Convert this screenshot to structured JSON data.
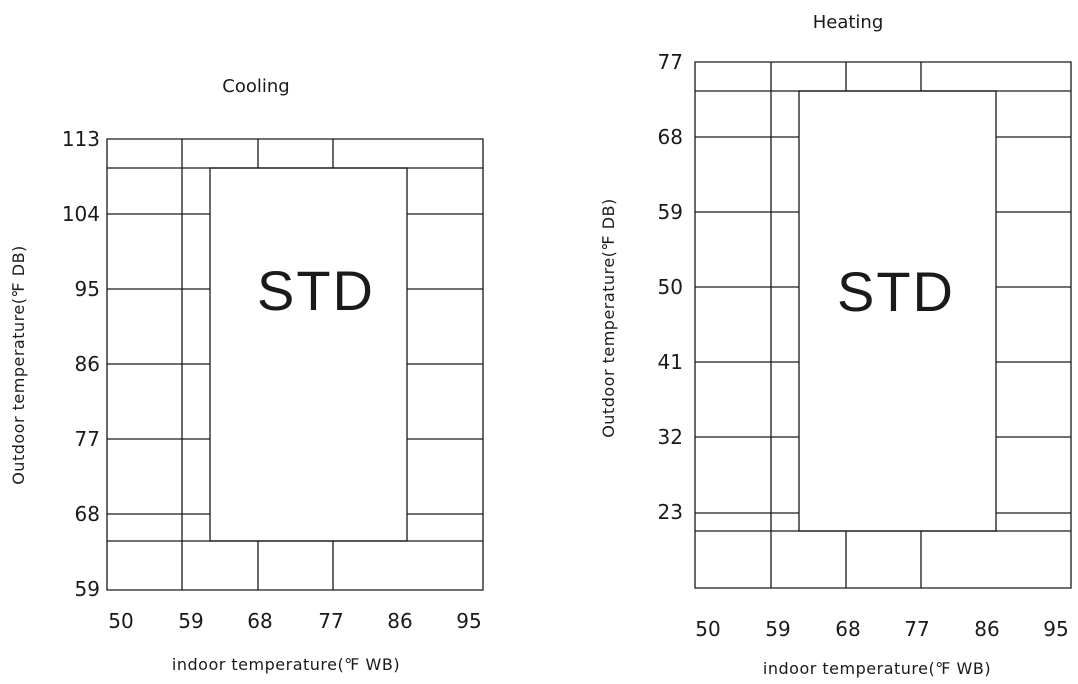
{
  "cooling": {
    "title": "Cooling",
    "xlabel": "indoor temperature(℉  WB)",
    "ylabel": "Outdoor temperature(℉  DB)",
    "x_ticks": [
      "50",
      "59",
      "68",
      "77",
      "86",
      "95"
    ],
    "y_ticks": [
      "113",
      "104",
      "95",
      "86",
      "77",
      "68",
      "59"
    ],
    "region_label": "STD"
  },
  "heating": {
    "title": "Heating",
    "xlabel": "indoor temperature(℉  WB)",
    "ylabel": "Outdoor temperature(℉  DB)",
    "x_ticks": [
      "50",
      "59",
      "68",
      "77",
      "86",
      "95"
    ],
    "y_ticks": [
      "77",
      "68",
      "59",
      "50",
      "41",
      "32",
      "23"
    ],
    "region_label": "STD"
  }
}
